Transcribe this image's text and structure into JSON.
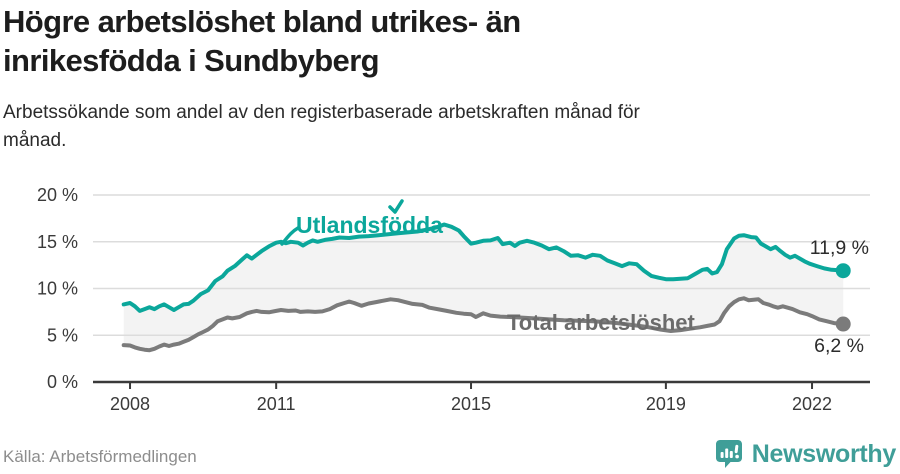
{
  "header": {
    "title": "Högre arbetslöshet bland utrikes- än inrikesfödda i Sundbyberg",
    "subtitle": "Arbetssökande som andel av den registerbaserade arbetskraften månad för månad."
  },
  "footer": {
    "source": "Källa: Arbetsförmedlingen",
    "brand": "Newsworthy"
  },
  "colors": {
    "accent_teal": "#0ba79b",
    "line_gray": "#7b7b7b",
    "label_gray": "#6b6b6b",
    "band": "#f3f3f3",
    "grid": "#dcdcdc",
    "axis": "#3a3a3a",
    "value_label": "#2b2b2b",
    "brand_teal": "#3f9e98"
  },
  "chart_data": {
    "type": "line",
    "title": "Högre arbetslöshet bland utrikes- än inrikesfödda i Sundbyberg",
    "xlabel": "",
    "ylabel": "",
    "grid": true,
    "legend_position": "inline-labels",
    "x_range": [
      2007.24,
      2023.19
    ],
    "y_range": [
      0,
      21.07
    ],
    "x_ticks": [
      {
        "value": 2008,
        "label": "2008"
      },
      {
        "value": 2011,
        "label": "2011"
      },
      {
        "value": 2015,
        "label": "2015"
      },
      {
        "value": 2019,
        "label": "2019"
      },
      {
        "value": 2022,
        "label": "2022"
      }
    ],
    "y_ticks": [
      {
        "value": 0,
        "label": "0 %"
      },
      {
        "value": 5,
        "label": "5 %"
      },
      {
        "value": 10,
        "label": "10 %"
      },
      {
        "value": 15,
        "label": "15 %"
      },
      {
        "value": 20,
        "label": "20 %"
      }
    ],
    "series": [
      {
        "name": "utlandsfodda",
        "label": "Utlandsfödda",
        "color": "#0ba79b",
        "end_label": "11,9 %",
        "end_value": 11.9,
        "points": [
          [
            2007.87,
            8.3
          ],
          [
            2008.0,
            8.45
          ],
          [
            2008.1,
            8.1
          ],
          [
            2008.2,
            7.6
          ],
          [
            2008.3,
            7.8
          ],
          [
            2008.4,
            8.0
          ],
          [
            2008.5,
            7.8
          ],
          [
            2008.6,
            8.1
          ],
          [
            2008.7,
            8.3
          ],
          [
            2008.8,
            8.0
          ],
          [
            2008.9,
            7.7
          ],
          [
            2009.0,
            8.0
          ],
          [
            2009.1,
            8.3
          ],
          [
            2009.2,
            8.35
          ],
          [
            2009.3,
            8.7
          ],
          [
            2009.45,
            9.4
          ],
          [
            2009.6,
            9.8
          ],
          [
            2009.75,
            10.8
          ],
          [
            2009.9,
            11.3
          ],
          [
            2010.0,
            11.9
          ],
          [
            2010.15,
            12.4
          ],
          [
            2010.3,
            13.1
          ],
          [
            2010.4,
            13.55
          ],
          [
            2010.5,
            13.2
          ],
          [
            2010.6,
            13.6
          ],
          [
            2010.7,
            14.0
          ],
          [
            2010.85,
            14.5
          ],
          [
            2011.0,
            14.9
          ],
          [
            2011.1,
            15.0
          ],
          [
            2011.2,
            14.85
          ],
          [
            2011.3,
            15.0
          ],
          [
            2011.45,
            14.9
          ],
          [
            2011.55,
            14.6
          ],
          [
            2011.65,
            14.9
          ],
          [
            2011.75,
            15.15
          ],
          [
            2011.85,
            15.0
          ],
          [
            2012.0,
            15.2
          ],
          [
            2012.15,
            15.3
          ],
          [
            2012.3,
            15.45
          ],
          [
            2012.5,
            15.4
          ],
          [
            2012.7,
            15.55
          ],
          [
            2012.9,
            15.6
          ],
          [
            2013.1,
            15.7
          ],
          [
            2013.3,
            15.8
          ],
          [
            2013.5,
            15.9
          ],
          [
            2013.7,
            16.0
          ],
          [
            2013.9,
            16.1
          ],
          [
            2014.1,
            16.3
          ],
          [
            2014.3,
            16.55
          ],
          [
            2014.45,
            16.85
          ],
          [
            2014.6,
            16.6
          ],
          [
            2014.75,
            16.2
          ],
          [
            2014.85,
            15.6
          ],
          [
            2015.0,
            14.8
          ],
          [
            2015.1,
            14.9
          ],
          [
            2015.25,
            15.1
          ],
          [
            2015.4,
            15.15
          ],
          [
            2015.55,
            15.4
          ],
          [
            2015.65,
            14.75
          ],
          [
            2015.8,
            14.9
          ],
          [
            2015.9,
            14.55
          ],
          [
            2016.0,
            14.9
          ],
          [
            2016.15,
            15.1
          ],
          [
            2016.3,
            14.9
          ],
          [
            2016.45,
            14.6
          ],
          [
            2016.6,
            14.2
          ],
          [
            2016.75,
            14.4
          ],
          [
            2016.9,
            14.0
          ],
          [
            2017.05,
            13.5
          ],
          [
            2017.2,
            13.55
          ],
          [
            2017.35,
            13.3
          ],
          [
            2017.5,
            13.6
          ],
          [
            2017.65,
            13.5
          ],
          [
            2017.8,
            13.0
          ],
          [
            2017.95,
            12.7
          ],
          [
            2018.1,
            12.4
          ],
          [
            2018.25,
            12.7
          ],
          [
            2018.4,
            12.6
          ],
          [
            2018.55,
            11.9
          ],
          [
            2018.7,
            11.35
          ],
          [
            2018.85,
            11.15
          ],
          [
            2019.0,
            11.0
          ],
          [
            2019.15,
            11.0
          ],
          [
            2019.3,
            11.05
          ],
          [
            2019.45,
            11.1
          ],
          [
            2019.6,
            11.55
          ],
          [
            2019.75,
            12.0
          ],
          [
            2019.85,
            12.1
          ],
          [
            2019.95,
            11.6
          ],
          [
            2020.05,
            11.75
          ],
          [
            2020.15,
            12.6
          ],
          [
            2020.25,
            14.2
          ],
          [
            2020.4,
            15.35
          ],
          [
            2020.5,
            15.65
          ],
          [
            2020.6,
            15.7
          ],
          [
            2020.75,
            15.5
          ],
          [
            2020.85,
            15.45
          ],
          [
            2020.95,
            14.8
          ],
          [
            2021.05,
            14.5
          ],
          [
            2021.15,
            14.2
          ],
          [
            2021.25,
            14.45
          ],
          [
            2021.35,
            14.0
          ],
          [
            2021.45,
            13.6
          ],
          [
            2021.55,
            13.3
          ],
          [
            2021.65,
            13.5
          ],
          [
            2021.75,
            13.2
          ],
          [
            2021.85,
            12.9
          ],
          [
            2021.95,
            12.65
          ],
          [
            2022.1,
            12.4
          ],
          [
            2022.25,
            12.15
          ],
          [
            2022.4,
            12.0
          ],
          [
            2022.55,
            11.95
          ],
          [
            2022.64,
            11.9
          ]
        ]
      },
      {
        "name": "total-arbetsloshet",
        "label": "Total arbetslöshet",
        "color": "#7b7b7b",
        "end_label": "6,2 %",
        "end_value": 6.2,
        "points": [
          [
            2007.87,
            3.95
          ],
          [
            2008.0,
            3.9
          ],
          [
            2008.1,
            3.7
          ],
          [
            2008.2,
            3.55
          ],
          [
            2008.3,
            3.45
          ],
          [
            2008.4,
            3.4
          ],
          [
            2008.5,
            3.55
          ],
          [
            2008.6,
            3.8
          ],
          [
            2008.7,
            4.0
          ],
          [
            2008.8,
            3.85
          ],
          [
            2008.9,
            4.0
          ],
          [
            2009.0,
            4.1
          ],
          [
            2009.1,
            4.3
          ],
          [
            2009.2,
            4.5
          ],
          [
            2009.3,
            4.8
          ],
          [
            2009.4,
            5.1
          ],
          [
            2009.5,
            5.35
          ],
          [
            2009.6,
            5.6
          ],
          [
            2009.7,
            6.0
          ],
          [
            2009.8,
            6.5
          ],
          [
            2009.9,
            6.7
          ],
          [
            2010.0,
            6.9
          ],
          [
            2010.1,
            6.8
          ],
          [
            2010.25,
            6.95
          ],
          [
            2010.4,
            7.35
          ],
          [
            2010.5,
            7.5
          ],
          [
            2010.6,
            7.6
          ],
          [
            2010.7,
            7.5
          ],
          [
            2010.85,
            7.45
          ],
          [
            2011.0,
            7.6
          ],
          [
            2011.1,
            7.7
          ],
          [
            2011.25,
            7.6
          ],
          [
            2011.4,
            7.65
          ],
          [
            2011.5,
            7.5
          ],
          [
            2011.65,
            7.55
          ],
          [
            2011.8,
            7.5
          ],
          [
            2011.95,
            7.55
          ],
          [
            2012.1,
            7.8
          ],
          [
            2012.25,
            8.2
          ],
          [
            2012.4,
            8.45
          ],
          [
            2012.5,
            8.6
          ],
          [
            2012.6,
            8.45
          ],
          [
            2012.75,
            8.15
          ],
          [
            2012.9,
            8.4
          ],
          [
            2013.05,
            8.55
          ],
          [
            2013.2,
            8.7
          ],
          [
            2013.35,
            8.85
          ],
          [
            2013.5,
            8.75
          ],
          [
            2013.65,
            8.55
          ],
          [
            2013.8,
            8.35
          ],
          [
            2014.0,
            8.25
          ],
          [
            2014.15,
            7.95
          ],
          [
            2014.35,
            7.75
          ],
          [
            2014.5,
            7.6
          ],
          [
            2014.7,
            7.4
          ],
          [
            2014.85,
            7.3
          ],
          [
            2015.0,
            7.25
          ],
          [
            2015.1,
            6.95
          ],
          [
            2015.25,
            7.35
          ],
          [
            2015.4,
            7.1
          ],
          [
            2015.6,
            7.0
          ],
          [
            2015.8,
            6.95
          ],
          [
            2016.0,
            6.9
          ],
          [
            2016.3,
            6.8
          ],
          [
            2016.6,
            6.7
          ],
          [
            2016.9,
            6.6
          ],
          [
            2017.2,
            6.55
          ],
          [
            2017.5,
            6.5
          ],
          [
            2017.8,
            6.4
          ],
          [
            2018.0,
            6.3
          ],
          [
            2018.3,
            6.1
          ],
          [
            2018.6,
            5.9
          ],
          [
            2018.9,
            5.6
          ],
          [
            2019.1,
            5.45
          ],
          [
            2019.3,
            5.55
          ],
          [
            2019.5,
            5.7
          ],
          [
            2019.7,
            5.85
          ],
          [
            2019.85,
            6.0
          ],
          [
            2020.0,
            6.15
          ],
          [
            2020.1,
            6.5
          ],
          [
            2020.2,
            7.4
          ],
          [
            2020.3,
            8.1
          ],
          [
            2020.4,
            8.55
          ],
          [
            2020.5,
            8.85
          ],
          [
            2020.6,
            8.95
          ],
          [
            2020.7,
            8.75
          ],
          [
            2020.8,
            8.8
          ],
          [
            2020.9,
            8.85
          ],
          [
            2021.0,
            8.45
          ],
          [
            2021.1,
            8.3
          ],
          [
            2021.2,
            8.1
          ],
          [
            2021.3,
            7.95
          ],
          [
            2021.4,
            8.1
          ],
          [
            2021.5,
            7.95
          ],
          [
            2021.6,
            7.8
          ],
          [
            2021.75,
            7.45
          ],
          [
            2021.9,
            7.25
          ],
          [
            2022.0,
            7.05
          ],
          [
            2022.15,
            6.7
          ],
          [
            2022.3,
            6.5
          ],
          [
            2022.45,
            6.3
          ],
          [
            2022.55,
            6.25
          ],
          [
            2022.64,
            6.2
          ]
        ]
      }
    ]
  }
}
